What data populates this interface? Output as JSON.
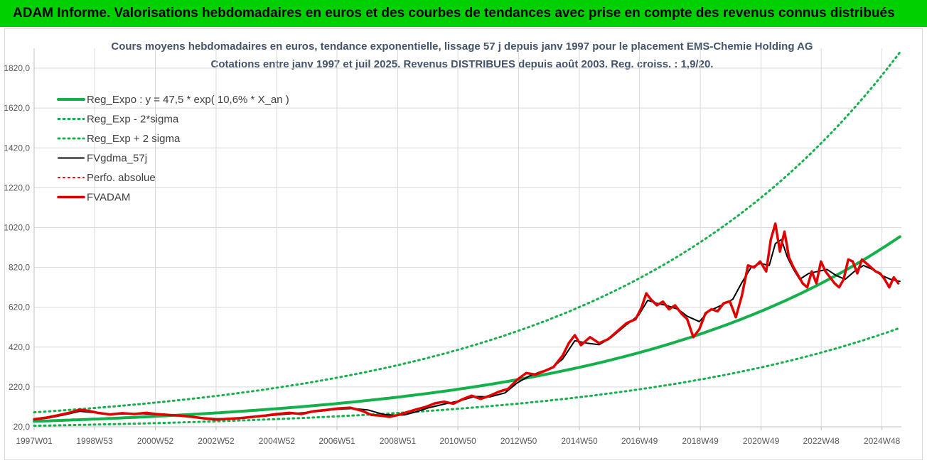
{
  "banner": {
    "title": "ADAM Informe. Valorisations hebdomadaires en euros et des courbes de tendances avec prise en compte des revenus connus distribués"
  },
  "chart_data": {
    "type": "line",
    "title": "Cours moyens hebdomadaires en euros, tendance exponentielle, lissage 57 j depuis janv 1997  pour le placement EMS-Chemie Holding AG",
    "subtitle": "Cotations entre janv 1997 et juil 2025. Revenus DISTRIBUES depuis août 2003.  Reg. croiss. : 1,9/20.",
    "xlabel": "",
    "ylabel": "",
    "ylim": [
      20,
      1920
    ],
    "xlim": [
      1997.0,
      2025.55
    ],
    "yticks": [
      "20,0",
      "220,0",
      "420,0",
      "620,0",
      "820,0",
      "1020,0",
      "1220,0",
      "1420,0",
      "1620,0",
      "1820,0"
    ],
    "ytick_values": [
      20,
      220,
      420,
      620,
      820,
      1020,
      1220,
      1420,
      1620,
      1820
    ],
    "xticks": [
      {
        "label": "1997W01",
        "year": 1997.0
      },
      {
        "label": "1998W53",
        "year": 1998.99
      },
      {
        "label": "2000W52",
        "year": 2000.99
      },
      {
        "label": "2002W52",
        "year": 2002.99
      },
      {
        "label": "2004W52",
        "year": 2004.99
      },
      {
        "label": "2006W51",
        "year": 2006.97
      },
      {
        "label": "2008W51",
        "year": 2008.97
      },
      {
        "label": "2010W50",
        "year": 2010.95
      },
      {
        "label": "2012W50",
        "year": 2012.95
      },
      {
        "label": "2014W50",
        "year": 2014.95
      },
      {
        "label": "2016W49",
        "year": 2016.93
      },
      {
        "label": "2018W49",
        "year": 2018.93
      },
      {
        "label": "2020W49",
        "year": 2020.93
      },
      {
        "label": "2022W48",
        "year": 2022.91
      },
      {
        "label": "2024W48",
        "year": 2024.91
      }
    ],
    "grid": true,
    "legend_position": "top-left",
    "series": [
      {
        "name": "Reg_Expo : y = 47,5 * exp( 10,6% *  X_an )",
        "color": "#13b04b",
        "style": "solid",
        "width": 4,
        "kind": "exp",
        "a": 47.5,
        "r": 0.106,
        "factor": 1.0
      },
      {
        "name": "Reg_Exp - 2*sigma",
        "color": "#13b04b",
        "style": "dotted",
        "width": 3,
        "kind": "exp",
        "a": 47.5,
        "r": 0.106,
        "factor": 0.53
      },
      {
        "name": "Reg_Exp + 2 sigma",
        "color": "#13b04b",
        "style": "dotted",
        "width": 3,
        "kind": "exp",
        "a": 47.5,
        "r": 0.106,
        "factor": 1.95
      },
      {
        "name": "FVgdma_57j",
        "color": "#000000",
        "style": "solid",
        "width": 2,
        "kind": "points",
        "x": [
          1997.0,
          1997.5,
          1998.0,
          1998.5,
          1998.9,
          1999.5,
          2000.0,
          2000.5,
          2001.0,
          2001.5,
          2002.0,
          2002.5,
          2003.0,
          2003.5,
          2004.0,
          2004.5,
          2005.0,
          2005.5,
          2006.0,
          2006.5,
          2007.0,
          2007.5,
          2008.0,
          2008.5,
          2008.9,
          2009.2,
          2009.6,
          2010.0,
          2010.5,
          2011.0,
          2011.5,
          2012.0,
          2012.5,
          2012.9,
          2013.3,
          2013.7,
          2014.0,
          2014.4,
          2014.8,
          2015.2,
          2015.6,
          2016.0,
          2016.4,
          2016.9,
          2017.2,
          2017.5,
          2017.8,
          2018.2,
          2018.5,
          2018.9,
          2019.2,
          2019.6,
          2020.0,
          2020.3,
          2020.6,
          2020.9,
          2021.2,
          2021.4,
          2021.6,
          2021.8,
          2022.0,
          2022.2,
          2022.5,
          2022.8,
          2023.1,
          2023.4,
          2023.7,
          2024.0,
          2024.3,
          2024.6,
          2024.9,
          2025.2,
          2025.5
        ],
        "y": [
          55,
          65,
          80,
          98,
          92,
          82,
          85,
          86,
          82,
          78,
          74,
          66,
          60,
          62,
          66,
          72,
          80,
          86,
          92,
          100,
          108,
          112,
          104,
          82,
          78,
          80,
          96,
          116,
          134,
          150,
          172,
          170,
          190,
          240,
          275,
          298,
          310,
          360,
          452,
          440,
          432,
          468,
          520,
          580,
          655,
          640,
          630,
          610,
          575,
          548,
          600,
          628,
          660,
          745,
          820,
          840,
          830,
          940,
          960,
          870,
          810,
          760,
          790,
          800,
          810,
          780,
          760,
          800,
          830,
          810,
          780,
          760,
          750
        ]
      },
      {
        "name": "Perfo. absolue",
        "color": "#e00000",
        "style": "dotted",
        "width": 2,
        "kind": "none"
      },
      {
        "name": "FVADAM",
        "color": "#e00000",
        "style": "solid",
        "width": 3.5,
        "kind": "points",
        "x": [
          1997.0,
          1997.4,
          1997.8,
          1998.2,
          1998.5,
          1998.8,
          1999.1,
          1999.5,
          1999.9,
          2000.3,
          2000.7,
          2001.0,
          2001.4,
          2001.8,
          2002.2,
          2002.6,
          2003.0,
          2003.4,
          2003.8,
          2004.2,
          2004.6,
          2005.0,
          2005.4,
          2005.8,
          2006.2,
          2006.6,
          2007.0,
          2007.4,
          2007.8,
          2008.1,
          2008.4,
          2008.7,
          2009.0,
          2009.3,
          2009.6,
          2009.9,
          2010.2,
          2010.5,
          2010.8,
          2011.1,
          2011.4,
          2011.7,
          2012.0,
          2012.3,
          2012.6,
          2012.9,
          2013.2,
          2013.5,
          2013.8,
          2014.1,
          2014.4,
          2014.6,
          2014.8,
          2015.0,
          2015.3,
          2015.6,
          2015.9,
          2016.2,
          2016.5,
          2016.8,
          2017.0,
          2017.15,
          2017.3,
          2017.5,
          2017.7,
          2017.9,
          2018.1,
          2018.3,
          2018.5,
          2018.7,
          2018.9,
          2019.1,
          2019.3,
          2019.5,
          2019.7,
          2019.9,
          2020.1,
          2020.3,
          2020.5,
          2020.7,
          2020.9,
          2021.1,
          2021.25,
          2021.4,
          2021.55,
          2021.7,
          2021.85,
          2022.0,
          2022.15,
          2022.3,
          2022.45,
          2022.6,
          2022.75,
          2022.9,
          2023.05,
          2023.2,
          2023.35,
          2023.5,
          2023.65,
          2023.8,
          2023.95,
          2024.1,
          2024.25,
          2024.4,
          2024.55,
          2024.7,
          2024.85,
          2025.0,
          2025.15,
          2025.3,
          2025.45
        ],
        "y": [
          58,
          66,
          78,
          92,
          106,
          100,
          90,
          82,
          88,
          84,
          90,
          84,
          80,
          76,
          70,
          62,
          56,
          60,
          64,
          70,
          76,
          84,
          90,
          84,
          98,
          104,
          112,
          116,
          100,
          80,
          76,
          70,
          80,
          94,
          108,
          120,
          138,
          146,
          136,
          158,
          176,
          160,
          176,
          196,
          210,
          256,
          290,
          282,
          300,
          320,
          378,
          440,
          480,
          430,
          470,
          440,
          460,
          500,
          540,
          560,
          620,
          690,
          660,
          630,
          648,
          610,
          630,
          590,
          560,
          470,
          510,
          590,
          610,
          600,
          640,
          650,
          570,
          680,
          830,
          820,
          850,
          800,
          960,
          1040,
          900,
          1000,
          870,
          820,
          780,
          740,
          720,
          800,
          740,
          850,
          800,
          770,
          740,
          720,
          760,
          860,
          850,
          790,
          860,
          840,
          820,
          800,
          790,
          760,
          720,
          770,
          740
        ]
      }
    ]
  }
}
